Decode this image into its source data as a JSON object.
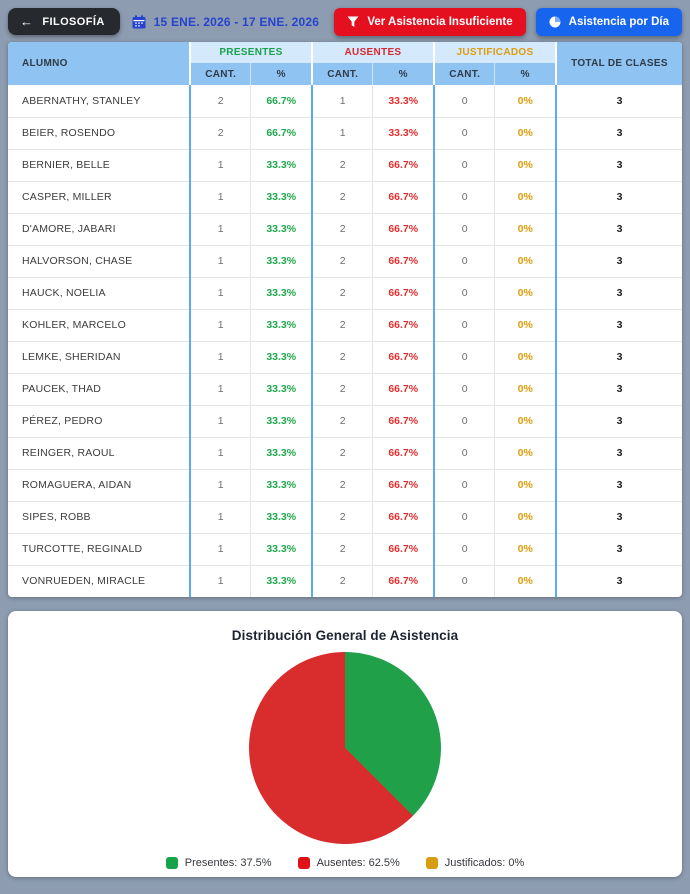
{
  "toolbar": {
    "back_label": "FILOSOFÍA",
    "back_arrow": "←",
    "date_range": "15 ENE. 2026 - 17 ENE. 2026",
    "filter_button_label": "Ver Asistencia Insuficiente",
    "day_button_label": "Asistencia por Día",
    "accent_red": "#e4101f",
    "accent_blue": "#1765ee",
    "date_blue": "#2643cd"
  },
  "table": {
    "col_alumno": "ALUMNO",
    "group_presentes": "PRESENTES",
    "group_ausentes": "AUSENTES",
    "group_justificados": "JUSTIFICADOS",
    "col_cant": "CANT.",
    "col_pct": "%",
    "col_total": "TOTAL DE CLASES",
    "header_bg": "#8fc3f2",
    "group_header_bg": "#d4e9fb",
    "rows": [
      {
        "name": "ABERNATHY, STANLEY",
        "p_cant": "2",
        "p_pct": "66.7%",
        "a_cant": "1",
        "a_pct": "33.3%",
        "j_cant": "0",
        "j_pct": "0%",
        "total": "3"
      },
      {
        "name": "BEIER, ROSENDO",
        "p_cant": "2",
        "p_pct": "66.7%",
        "a_cant": "1",
        "a_pct": "33.3%",
        "j_cant": "0",
        "j_pct": "0%",
        "total": "3"
      },
      {
        "name": "BERNIER, BELLE",
        "p_cant": "1",
        "p_pct": "33.3%",
        "a_cant": "2",
        "a_pct": "66.7%",
        "j_cant": "0",
        "j_pct": "0%",
        "total": "3"
      },
      {
        "name": "CASPER, MILLER",
        "p_cant": "1",
        "p_pct": "33.3%",
        "a_cant": "2",
        "a_pct": "66.7%",
        "j_cant": "0",
        "j_pct": "0%",
        "total": "3"
      },
      {
        "name": "D'AMORE, JABARI",
        "p_cant": "1",
        "p_pct": "33.3%",
        "a_cant": "2",
        "a_pct": "66.7%",
        "j_cant": "0",
        "j_pct": "0%",
        "total": "3"
      },
      {
        "name": "HALVORSON, CHASE",
        "p_cant": "1",
        "p_pct": "33.3%",
        "a_cant": "2",
        "a_pct": "66.7%",
        "j_cant": "0",
        "j_pct": "0%",
        "total": "3"
      },
      {
        "name": "HAUCK, NOELIA",
        "p_cant": "1",
        "p_pct": "33.3%",
        "a_cant": "2",
        "a_pct": "66.7%",
        "j_cant": "0",
        "j_pct": "0%",
        "total": "3"
      },
      {
        "name": "KOHLER, MARCELO",
        "p_cant": "1",
        "p_pct": "33.3%",
        "a_cant": "2",
        "a_pct": "66.7%",
        "j_cant": "0",
        "j_pct": "0%",
        "total": "3"
      },
      {
        "name": "LEMKE, SHERIDAN",
        "p_cant": "1",
        "p_pct": "33.3%",
        "a_cant": "2",
        "a_pct": "66.7%",
        "j_cant": "0",
        "j_pct": "0%",
        "total": "3"
      },
      {
        "name": "PAUCEK, THAD",
        "p_cant": "1",
        "p_pct": "33.3%",
        "a_cant": "2",
        "a_pct": "66.7%",
        "j_cant": "0",
        "j_pct": "0%",
        "total": "3"
      },
      {
        "name": "PÉREZ, PEDRO",
        "p_cant": "1",
        "p_pct": "33.3%",
        "a_cant": "2",
        "a_pct": "66.7%",
        "j_cant": "0",
        "j_pct": "0%",
        "total": "3"
      },
      {
        "name": "REINGER, RAOUL",
        "p_cant": "1",
        "p_pct": "33.3%",
        "a_cant": "2",
        "a_pct": "66.7%",
        "j_cant": "0",
        "j_pct": "0%",
        "total": "3"
      },
      {
        "name": "ROMAGUERA, AIDAN",
        "p_cant": "1",
        "p_pct": "33.3%",
        "a_cant": "2",
        "a_pct": "66.7%",
        "j_cant": "0",
        "j_pct": "0%",
        "total": "3"
      },
      {
        "name": "SIPES, ROBB",
        "p_cant": "1",
        "p_pct": "33.3%",
        "a_cant": "2",
        "a_pct": "66.7%",
        "j_cant": "0",
        "j_pct": "0%",
        "total": "3"
      },
      {
        "name": "TURCOTTE, REGINALD",
        "p_cant": "1",
        "p_pct": "33.3%",
        "a_cant": "2",
        "a_pct": "66.7%",
        "j_cant": "0",
        "j_pct": "0%",
        "total": "3"
      },
      {
        "name": "VONRUEDEN, MIRACLE",
        "p_cant": "1",
        "p_pct": "33.3%",
        "a_cant": "2",
        "a_pct": "66.7%",
        "j_cant": "0",
        "j_pct": "0%",
        "total": "3"
      }
    ]
  },
  "chart": {
    "title": "Distribución General de Asistencia",
    "legend": [
      {
        "label": "Presentes: 37.5%",
        "color": "#17a349"
      },
      {
        "label": "Ausentes: 62.5%",
        "color": "#e01217"
      },
      {
        "label": "Justificados: 0%",
        "color": "#d89d0e"
      }
    ]
  },
  "chart_data": {
    "type": "pie",
    "title": "Distribución General de Asistencia",
    "labels": [
      "Presentes",
      "Ausentes",
      "Justificados"
    ],
    "values": [
      37.5,
      62.5,
      0
    ],
    "colors": [
      "#21a04a",
      "#d92c2c",
      "#d89d0e"
    ],
    "start_angle_deg": 0,
    "direction": "clockwise",
    "legend_position": "bottom"
  }
}
